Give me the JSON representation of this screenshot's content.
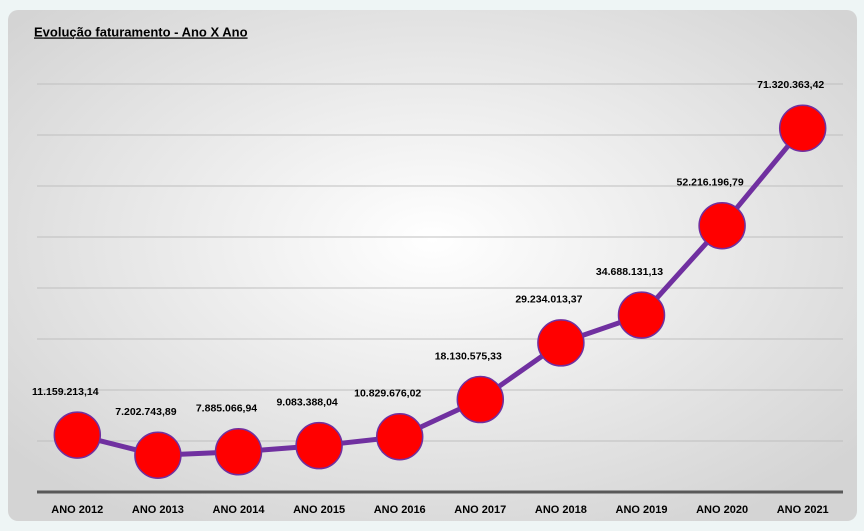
{
  "chart_data": {
    "type": "line",
    "title": "Evolução faturamento - Ano X Ano",
    "categories": [
      "ANO 2012",
      "ANO 2013",
      "ANO 2014",
      "ANO 2015",
      "ANO 2016",
      "ANO 2017",
      "ANO 2018",
      "ANO 2019",
      "ANO 2020",
      "ANO 2021"
    ],
    "series": [
      {
        "name": "Faturamento",
        "color": "#7030a0",
        "marker_color": "#ff0000",
        "values": [
          11159213.14,
          7202743.89,
          7885066.94,
          9083388.04,
          10829676.02,
          18130575.33,
          29234013.37,
          34688131.13,
          52216196.79,
          71320363.42
        ],
        "value_labels": [
          "11.159.213,14",
          "7.202.743,89",
          "7.885.066,94",
          "9.083.388,04",
          "10.829.676,02",
          "18.130.575,33",
          "29.234.013,37",
          "34.688.131,13",
          "52.216.196,79",
          "71.320.363,42"
        ]
      }
    ],
    "ylim": [
      0,
      80000000
    ],
    "yticks": [
      0,
      10000000,
      20000000,
      30000000,
      40000000,
      50000000,
      60000000,
      70000000,
      80000000
    ],
    "grid": true
  }
}
